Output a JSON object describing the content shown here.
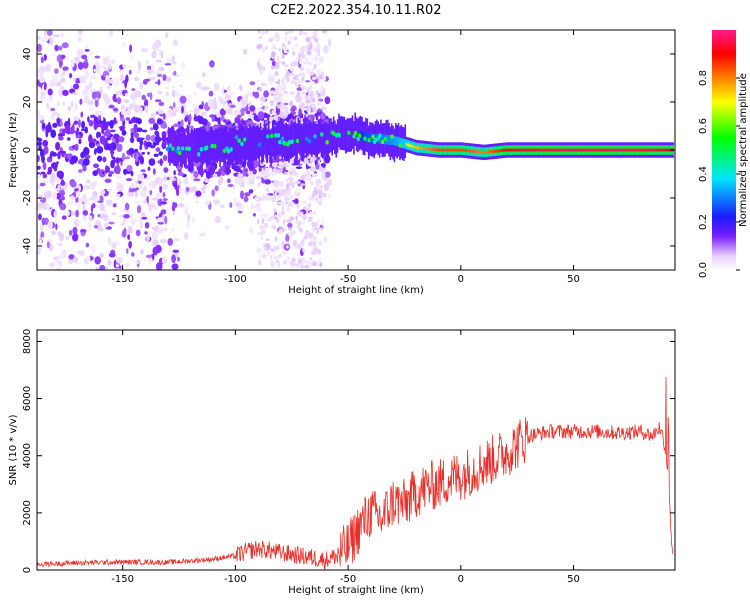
{
  "title": "C2E2.2022.354.10.11.R02",
  "chart_data": [
    {
      "type": "heatmap",
      "xlabel": "Height of straight line (km)",
      "ylabel": "Frequency (Hz)",
      "xlim": [
        -188,
        95
      ],
      "ylim": [
        -50,
        50
      ],
      "xticks": [
        -150,
        -100,
        -50,
        0,
        50
      ],
      "yticks": [
        -40,
        -20,
        0,
        20,
        40
      ],
      "colorbar": {
        "label": "Normalized spectral amplitude",
        "range": [
          0,
          1
        ],
        "ticks": [
          "0.0",
          "0.2",
          "0.4",
          "0.6",
          "0.8"
        ],
        "colors": [
          "#ffffff",
          "#e6ccff",
          "#7b1fff",
          "#1a1aff",
          "#00e5ff",
          "#00ff00",
          "#ffff00",
          "#ff8000",
          "#ff0000",
          "#ff1a8c"
        ]
      },
      "ridge": {
        "x": [
          -120,
          -100,
          -80,
          -60,
          -50,
          -40,
          -30,
          -20,
          -10,
          0,
          10,
          20,
          40,
          60,
          80,
          94
        ],
        "y": [
          1,
          2,
          4,
          5,
          7,
          5,
          4,
          1,
          0,
          0,
          -1,
          0,
          0,
          0,
          0,
          0
        ],
        "amplitude": [
          0.15,
          0.2,
          0.2,
          0.3,
          0.35,
          0.5,
          0.6,
          0.75,
          0.85,
          0.85,
          0.8,
          0.9,
          0.95,
          0.95,
          0.95,
          0.9
        ]
      }
    },
    {
      "type": "line",
      "xlabel": "Height of straight line (km)",
      "ylabel": "SNR (10 * v/v)",
      "xlim": [
        -188,
        95
      ],
      "ylim": [
        0,
        8400
      ],
      "xticks": [
        -150,
        -100,
        -50,
        0,
        50
      ],
      "yticks": [
        0,
        2000,
        4000,
        6000,
        8000
      ],
      "color": "#e8302a",
      "series": [
        {
          "x": [
            -188,
            -170,
            -150,
            -130,
            -120,
            -110,
            -100,
            -95,
            -90,
            -85,
            -80,
            -75,
            -70,
            -65,
            -60,
            -55,
            -50,
            -45,
            -40,
            -35,
            -30,
            -25,
            -20,
            -15,
            -10,
            -5,
            0,
            5,
            10,
            15,
            20,
            25,
            30,
            40,
            50,
            60,
            70,
            80,
            85,
            88,
            90,
            92,
            93,
            94
          ],
          "y": [
            200,
            250,
            280,
            270,
            320,
            380,
            500,
            650,
            750,
            680,
            600,
            550,
            480,
            420,
            350,
            500,
            800,
            1500,
            2000,
            1800,
            2400,
            2300,
            2700,
            2900,
            3000,
            3200,
            3300,
            3500,
            3700,
            3900,
            4100,
            4400,
            4700,
            4850,
            4850,
            4850,
            4800,
            4850,
            4700,
            5000,
            4600,
            3500,
            1500,
            500
          ]
        }
      ]
    }
  ]
}
